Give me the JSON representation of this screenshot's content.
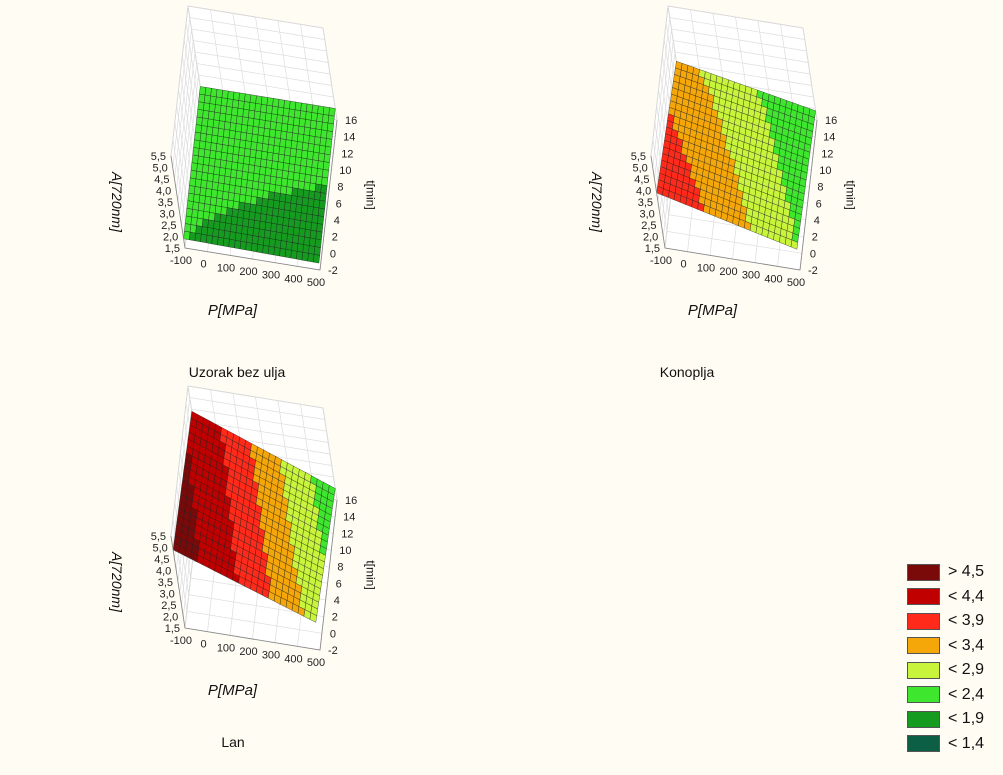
{
  "chart_data": [
    {
      "type": "surface3d",
      "title": "Uzorak bez ulja",
      "xlabel": "P[MPa]",
      "ylabel": "t[min]",
      "zlabel": "A[720nm]",
      "x_ticks": [
        "-100",
        "0",
        "100",
        "200",
        "300",
        "400",
        "500"
      ],
      "y_ticks": [
        "-2",
        "0",
        "2",
        "4",
        "6",
        "8",
        "10",
        "12",
        "14",
        "16"
      ],
      "z_ticks": [
        "1,5",
        "2,0",
        "2,5",
        "3,0",
        "3,5",
        "4,0",
        "4,5",
        "5,0",
        "5,5"
      ],
      "xlim": [
        -100,
        500
      ],
      "ylim": [
        -2,
        16
      ],
      "zlim": [
        1.5,
        5.5
      ],
      "corner_values": {
        "x_min_y_min": 1.9,
        "x_max_y_min": 1.8,
        "x_min_y_max": 2.0,
        "x_max_y_max": 2.0
      }
    },
    {
      "type": "surface3d",
      "title": "Konoplja",
      "xlabel": "P[MPa]",
      "ylabel": "t[min]",
      "zlabel": "A[720nm]",
      "x_ticks": [
        "-100",
        "0",
        "100",
        "200",
        "300",
        "400",
        "500"
      ],
      "y_ticks": [
        "-2",
        "0",
        "2",
        "4",
        "6",
        "8",
        "10",
        "12",
        "14",
        "16"
      ],
      "z_ticks": [
        "1,5",
        "2,0",
        "2,5",
        "3,0",
        "3,5",
        "4,0",
        "4,5",
        "5,0",
        "5,5"
      ],
      "xlim": [
        -100,
        500
      ],
      "ylim": [
        -2,
        16
      ],
      "zlim": [
        1.5,
        5.5
      ],
      "corner_values": {
        "x_min_y_min": 3.9,
        "x_max_y_min": 2.4,
        "x_min_y_max": 3.1,
        "x_max_y_max": 1.9
      }
    },
    {
      "type": "surface3d",
      "title": "Lan",
      "xlabel": "P[MPa]",
      "ylabel": "t[min]",
      "zlabel": "A[720nm]",
      "x_ticks": [
        "-100",
        "0",
        "100",
        "200",
        "300",
        "400",
        "500"
      ],
      "y_ticks": [
        "-2",
        "0",
        "2",
        "4",
        "6",
        "8",
        "10",
        "12",
        "14",
        "16"
      ],
      "z_ticks": [
        "1,5",
        "2,0",
        "2,5",
        "3,0",
        "3,5",
        "4,0",
        "4,5",
        "5,0",
        "5,5"
      ],
      "xlim": [
        -100,
        500
      ],
      "ylim": [
        -2,
        16
      ],
      "zlim": [
        1.5,
        5.5
      ],
      "corner_values": {
        "x_min_y_min": 4.9,
        "x_max_y_min": 2.7,
        "x_min_y_max": 4.4,
        "x_max_y_max": 2.0
      }
    }
  ],
  "legend": {
    "placement": "bottom-right",
    "items": [
      {
        "label": "> 4,5",
        "color": "#7a0a0a"
      },
      {
        "label": "< 4,4",
        "color": "#c00000"
      },
      {
        "label": "< 3,9",
        "color": "#ff2a1a"
      },
      {
        "label": "< 3,4",
        "color": "#f5a70a"
      },
      {
        "label": "< 2,9",
        "color": "#c8f53c"
      },
      {
        "label": "< 2,4",
        "color": "#3ee62e"
      },
      {
        "label": "< 1,9",
        "color": "#159c20"
      },
      {
        "label": "< 1,4",
        "color": "#0c5e45"
      }
    ]
  }
}
